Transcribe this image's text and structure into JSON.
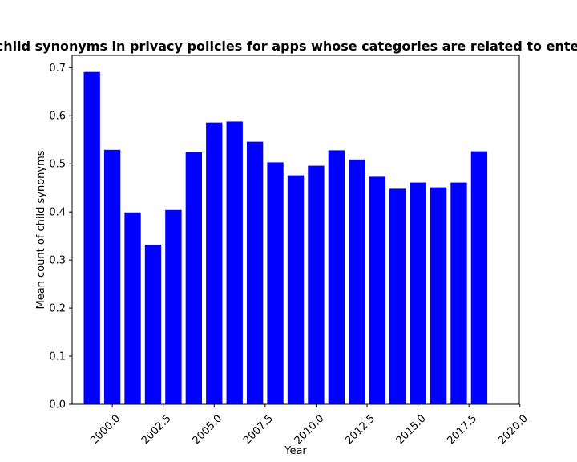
{
  "chart_data": {
    "type": "bar",
    "title": "Mean count of child synonyms in privacy policies for apps whose categories are related to entertainment;games",
    "xlabel": "Year",
    "ylabel": "Mean count of child synonyms",
    "x": [
      1999,
      2000,
      2001,
      2002,
      2003,
      2004,
      2005,
      2006,
      2007,
      2008,
      2009,
      2010,
      2011,
      2012,
      2013,
      2014,
      2015,
      2016,
      2017,
      2018
    ],
    "values": [
      0.691,
      0.529,
      0.399,
      0.332,
      0.404,
      0.524,
      0.586,
      0.588,
      0.546,
      0.503,
      0.476,
      0.496,
      0.528,
      0.509,
      0.473,
      0.448,
      0.461,
      0.451,
      0.461,
      0.526
    ],
    "xlim": [
      1998.03,
      2019.97
    ],
    "ylim": [
      0,
      0.7255
    ],
    "xticks": [
      2000.0,
      2002.5,
      2005.0,
      2007.5,
      2010.0,
      2012.5,
      2015.0,
      2017.5,
      2020.0
    ],
    "xtick_labels": [
      "2000.0",
      "2002.5",
      "2005.0",
      "2007.5",
      "2010.0",
      "2012.5",
      "2015.0",
      "2017.5",
      "2020.0"
    ],
    "yticks": [
      0.0,
      0.1,
      0.2,
      0.3,
      0.4,
      0.5,
      0.6,
      0.7
    ],
    "ytick_labels": [
      "0.0",
      "0.1",
      "0.2",
      "0.3",
      "0.4",
      "0.5",
      "0.6",
      "0.7"
    ],
    "bar_width": 0.8,
    "bar_color": "#0000ff",
    "grid": false,
    "legend": "none"
  }
}
